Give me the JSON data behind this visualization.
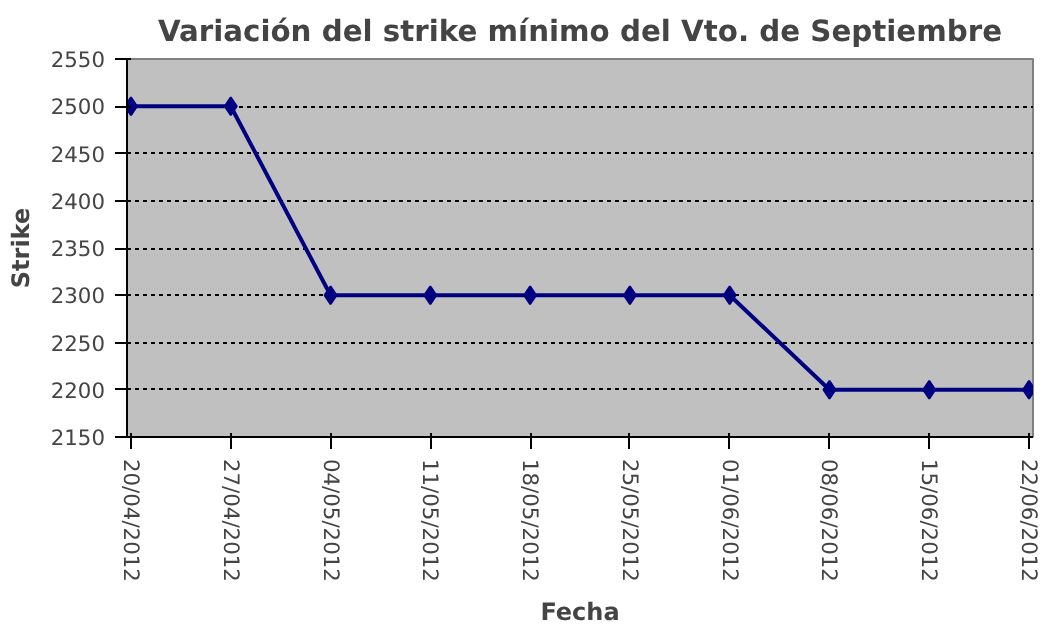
{
  "chart_data": {
    "type": "line",
    "title": "Variación del strike mínimo del Vto. de Septiembre",
    "xlabel": "Fecha",
    "ylabel": "Strike",
    "categories": [
      "20/04/2012",
      "27/04/2012",
      "04/05/2012",
      "11/05/2012",
      "18/05/2012",
      "25/05/2012",
      "01/06/2012",
      "08/06/2012",
      "15/06/2012",
      "22/06/2012"
    ],
    "series": [
      {
        "color": "#000080",
        "values": [
          2500,
          2500,
          2300,
          2300,
          2300,
          2300,
          2300,
          2200,
          2200,
          2200
        ]
      }
    ],
    "ylim": [
      2150,
      2550
    ],
    "yticks": [
      2150,
      2200,
      2250,
      2300,
      2350,
      2400,
      2450,
      2500,
      2550
    ],
    "grid": "y",
    "marker": "diamond",
    "line_style": "solid"
  }
}
